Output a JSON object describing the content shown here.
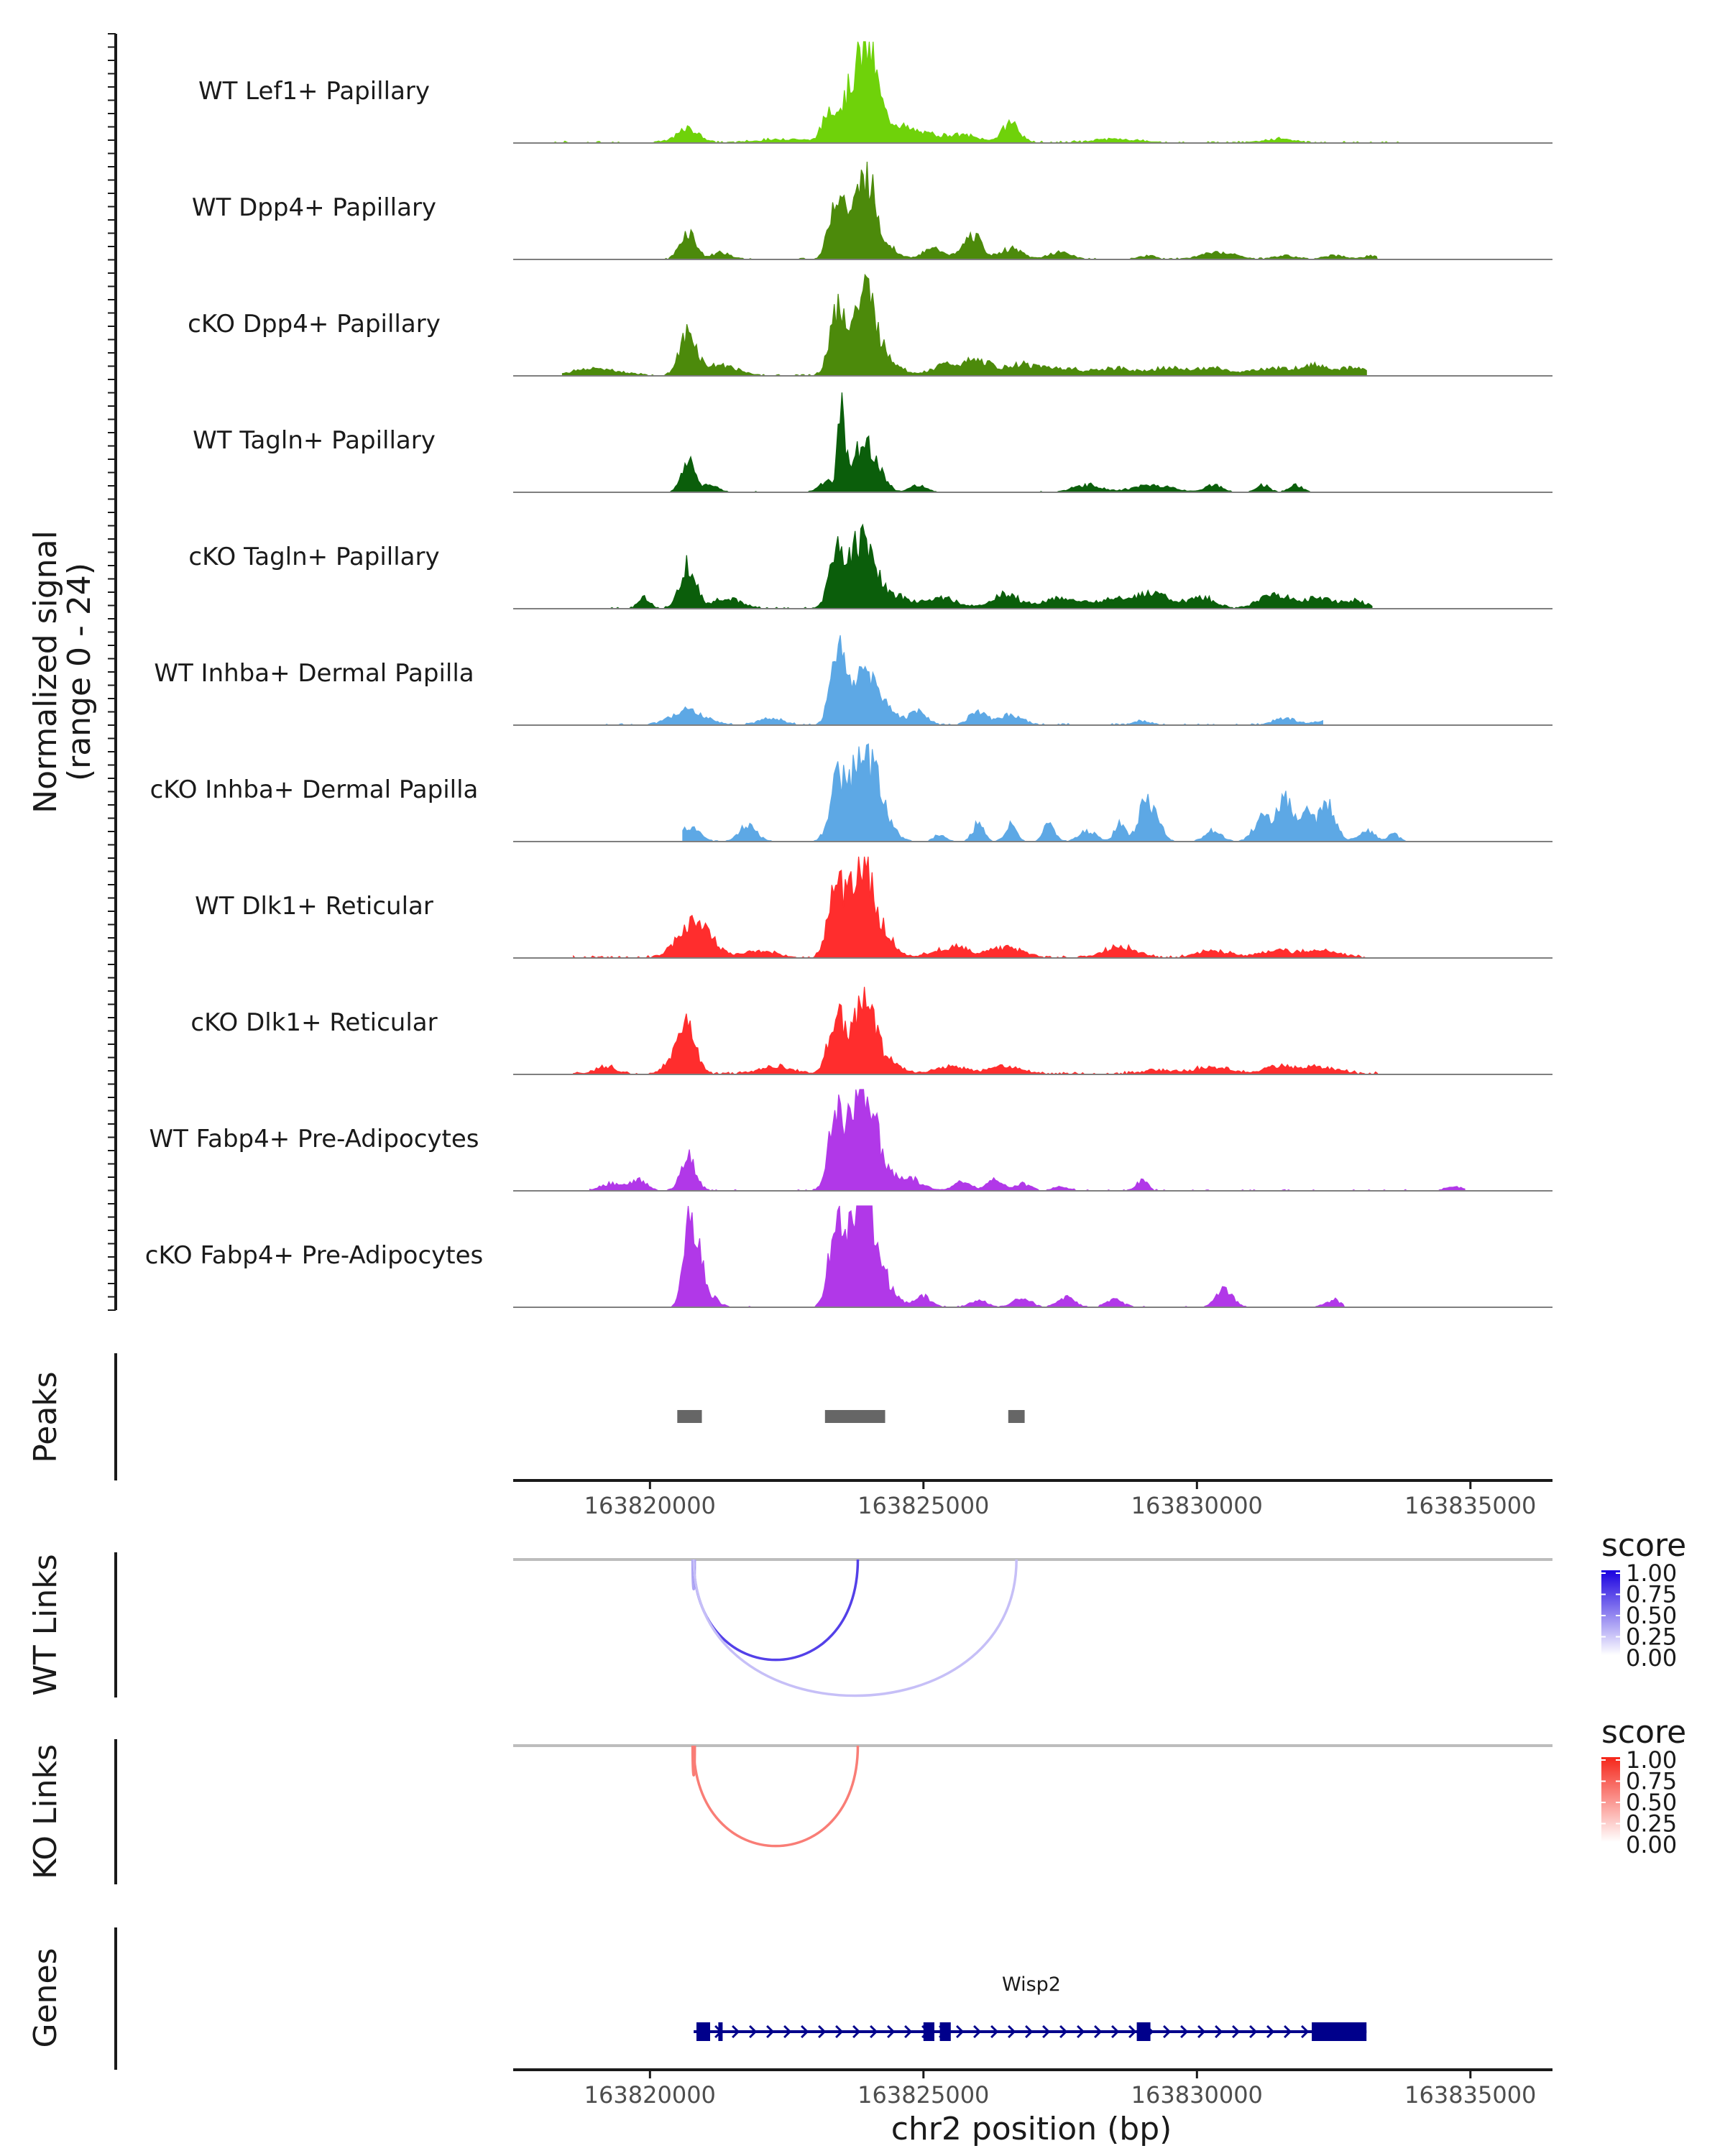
{
  "chart_data": {
    "type": "area",
    "title": "",
    "region": {
      "chromosome": "chr2",
      "start": 163817500,
      "end": 163836500
    },
    "xlabel": "chr2 position (bp)",
    "x_ticks": [
      163820000,
      163825000,
      163830000,
      163835000
    ],
    "y_axis": {
      "label_line1": "Normalized signal",
      "label_line2": "(range 0 - 24)",
      "range": [
        0,
        24
      ]
    },
    "coverage_tracks": [
      {
        "name": "WT Lef1+ Papillary",
        "color": "#6FD20A",
        "peaks": [
          [
            163820700,
            4,
            200
          ],
          [
            163823300,
            9,
            130
          ],
          [
            163823700,
            15,
            180
          ],
          [
            163824000,
            24,
            160
          ],
          [
            163824400,
            4,
            200
          ],
          [
            163824800,
            3,
            400
          ],
          [
            163825700,
            2,
            300
          ],
          [
            163826600,
            6,
            150
          ],
          [
            163822500,
            1,
            500
          ],
          [
            163828500,
            1,
            400
          ],
          [
            163831500,
            1,
            300
          ]
        ],
        "start": 163818200,
        "end": 163833900,
        "noise": 0.6
      },
      {
        "name": "WT Dpp4+ Papillary",
        "color": "#4C8A0B",
        "peaks": [
          [
            163820700,
            8,
            140
          ],
          [
            163821300,
            2,
            150
          ],
          [
            163823400,
            16,
            130
          ],
          [
            163823600,
            8,
            150
          ],
          [
            163823950,
            24,
            160
          ],
          [
            163824300,
            4,
            200
          ],
          [
            163825200,
            3,
            200
          ],
          [
            163825900,
            7,
            160
          ],
          [
            163826600,
            3,
            200
          ],
          [
            163827500,
            2,
            200
          ],
          [
            163829100,
            1,
            150
          ],
          [
            163830400,
            2,
            300
          ],
          [
            163831600,
            1,
            200
          ],
          [
            163832500,
            1,
            200
          ],
          [
            163833200,
            1,
            150
          ]
        ],
        "start": 163819700,
        "end": 163833300,
        "noise": 0.4
      },
      {
        "name": "cKO Dpp4+ Papillary",
        "color": "#4C8A0B",
        "peaks": [
          [
            163820700,
            12,
            150
          ],
          [
            163821300,
            3,
            300
          ],
          [
            163823400,
            16,
            130
          ],
          [
            163823600,
            9,
            160
          ],
          [
            163823950,
            22,
            170
          ],
          [
            163824300,
            5,
            250
          ],
          [
            163825400,
            3,
            250
          ],
          [
            163826000,
            4,
            250
          ],
          [
            163826800,
            3,
            300
          ],
          [
            163827500,
            2,
            300
          ],
          [
            163828500,
            2,
            400
          ],
          [
            163829500,
            2,
            300
          ],
          [
            163830300,
            2,
            300
          ],
          [
            163831300,
            2,
            300
          ],
          [
            163832100,
            3,
            300
          ],
          [
            163832900,
            2,
            300
          ],
          [
            163819000,
            2,
            400
          ]
        ],
        "start": 163818400,
        "end": 163833100,
        "noise": 0.5
      },
      {
        "name": "WT Tagln+ Papillary",
        "color": "#0B5E0B",
        "peaks": [
          [
            163820700,
            9,
            120
          ],
          [
            163821100,
            2,
            150
          ],
          [
            163823250,
            3,
            150
          ],
          [
            163823500,
            28,
            60
          ],
          [
            163823700,
            6,
            100
          ],
          [
            163823950,
            16,
            140
          ],
          [
            163824250,
            4,
            120
          ],
          [
            163824900,
            2,
            150
          ],
          [
            163828000,
            2,
            250
          ],
          [
            163829200,
            2,
            350
          ],
          [
            163830300,
            2,
            150
          ],
          [
            163831200,
            2,
            120
          ],
          [
            163831800,
            2,
            120
          ]
        ],
        "start": 163819800,
        "end": 163832100,
        "noise": 0.3
      },
      {
        "name": "cKO Tagln+ Papillary",
        "color": "#0B5E0B",
        "peaks": [
          [
            163820700,
            13,
            140
          ],
          [
            163821400,
            3,
            250
          ],
          [
            163823400,
            16,
            130
          ],
          [
            163823700,
            9,
            150
          ],
          [
            163823950,
            17,
            180
          ],
          [
            163824400,
            4,
            250
          ],
          [
            163825300,
            3,
            300
          ],
          [
            163826500,
            4,
            250
          ],
          [
            163827500,
            3,
            300
          ],
          [
            163828500,
            3,
            300
          ],
          [
            163829200,
            4,
            300
          ],
          [
            163830100,
            3,
            250
          ],
          [
            163831400,
            4,
            250
          ],
          [
            163832200,
            3,
            300
          ],
          [
            163832900,
            2,
            200
          ],
          [
            163819900,
            3,
            100
          ]
        ],
        "start": 163819200,
        "end": 163833200,
        "noise": 0.6
      },
      {
        "name": "WT Inhba+ Dermal Papilla",
        "color": "#5DA8E5",
        "peaks": [
          [
            163820700,
            4,
            300
          ],
          [
            163822200,
            2,
            200
          ],
          [
            163823400,
            18,
            120
          ],
          [
            163823600,
            8,
            150
          ],
          [
            163823950,
            14,
            170
          ],
          [
            163824300,
            5,
            200
          ],
          [
            163824900,
            4,
            150
          ],
          [
            163826000,
            4,
            150
          ],
          [
            163826600,
            3,
            200
          ],
          [
            163829000,
            1,
            150
          ],
          [
            163831600,
            2,
            200
          ],
          [
            163832300,
            1,
            150
          ]
        ],
        "start": 163819000,
        "end": 163832300,
        "noise": 0.5
      },
      {
        "name": "cKO Inhba+ Dermal Papilla",
        "color": "#5DA8E5",
        "peaks": [
          [
            163820700,
            4,
            200
          ],
          [
            163821800,
            5,
            150
          ],
          [
            163823400,
            16,
            130
          ],
          [
            163823700,
            13,
            150
          ],
          [
            163823950,
            18,
            180
          ],
          [
            163824200,
            9,
            200
          ],
          [
            163825300,
            2,
            100
          ],
          [
            163826000,
            5,
            100
          ],
          [
            163826600,
            5,
            100
          ],
          [
            163827300,
            5,
            100
          ],
          [
            163828000,
            3,
            150
          ],
          [
            163828600,
            5,
            100
          ],
          [
            163829050,
            12,
            120
          ],
          [
            163829300,
            5,
            100
          ],
          [
            163830300,
            3,
            150
          ],
          [
            163831200,
            7,
            150
          ],
          [
            163831600,
            12,
            130
          ],
          [
            163832000,
            8,
            150
          ],
          [
            163832400,
            10,
            140
          ],
          [
            163833100,
            3,
            150
          ],
          [
            163833600,
            2,
            100
          ]
        ],
        "start": 163820600,
        "end": 163834200,
        "noise": 0.3
      },
      {
        "name": "WT Dlk1+ Reticular",
        "color": "#FF2D2D",
        "peaks": [
          [
            163820700,
            7,
            250
          ],
          [
            163821000,
            5,
            250
          ],
          [
            163823400,
            21,
            140
          ],
          [
            163823700,
            10,
            150
          ],
          [
            163823950,
            24,
            170
          ],
          [
            163824300,
            5,
            200
          ],
          [
            163825500,
            3,
            300
          ],
          [
            163826500,
            3,
            300
          ],
          [
            163828600,
            3,
            300
          ],
          [
            163830300,
            2,
            300
          ],
          [
            163831500,
            2,
            300
          ],
          [
            163832300,
            2,
            300
          ],
          [
            163822000,
            2,
            300
          ]
        ],
        "start": 163818600,
        "end": 163833100,
        "noise": 0.8
      },
      {
        "name": "cKO Dlk1+ Reticular",
        "color": "#FF2D2D",
        "peaks": [
          [
            163820700,
            12,
            150
          ],
          [
            163820500,
            4,
            200
          ],
          [
            163823400,
            16,
            140
          ],
          [
            163823700,
            7,
            150
          ],
          [
            163823950,
            18,
            170
          ],
          [
            163824300,
            4,
            250
          ],
          [
            163825500,
            2,
            300
          ],
          [
            163826500,
            2,
            300
          ],
          [
            163829300,
            1,
            300
          ],
          [
            163830300,
            2,
            300
          ],
          [
            163831500,
            2,
            300
          ],
          [
            163832300,
            2,
            300
          ],
          [
            163822300,
            2,
            300
          ],
          [
            163819200,
            2,
            200
          ]
        ],
        "start": 163818600,
        "end": 163833300,
        "noise": 0.9
      },
      {
        "name": "WT Fabp4+ Pre-Adipocytes",
        "color": "#B138E8",
        "peaks": [
          [
            163820700,
            10,
            130
          ],
          [
            163819300,
            2,
            200
          ],
          [
            163819800,
            3,
            150
          ],
          [
            163823400,
            24,
            130
          ],
          [
            163823700,
            12,
            150
          ],
          [
            163823950,
            26,
            180
          ],
          [
            163824300,
            5,
            200
          ],
          [
            163824800,
            3,
            200
          ],
          [
            163825700,
            3,
            150
          ],
          [
            163826300,
            3,
            150
          ],
          [
            163826800,
            2,
            150
          ],
          [
            163827500,
            1,
            150
          ],
          [
            163829000,
            3,
            100
          ],
          [
            163834700,
            1,
            150
          ]
        ],
        "start": 163818900,
        "end": 163834900,
        "noise": 0.4
      },
      {
        "name": "cKO Fabp4+ Pre-Adipocytes",
        "color": "#B138E8",
        "peaks": [
          [
            163820700,
            25,
            100
          ],
          [
            163820900,
            12,
            100
          ],
          [
            163821100,
            3,
            150
          ],
          [
            163823400,
            24,
            130
          ],
          [
            163823700,
            15,
            150
          ],
          [
            163823950,
            30,
            180
          ],
          [
            163824300,
            6,
            200
          ],
          [
            163825000,
            3,
            150
          ],
          [
            163826000,
            2,
            150
          ],
          [
            163826800,
            3,
            150
          ],
          [
            163827600,
            3,
            150
          ],
          [
            163828500,
            2,
            150
          ],
          [
            163830500,
            5,
            150
          ],
          [
            163832500,
            2,
            150
          ]
        ],
        "start": 163820000,
        "end": 163832700,
        "noise": 0.3
      }
    ],
    "peaks_track": {
      "label": "Peaks",
      "color": "#666666",
      "regions": [
        [
          163820500,
          163820950
        ],
        [
          163823200,
          163824300
        ],
        [
          163826550,
          163826850
        ]
      ]
    },
    "link_tracks": [
      {
        "label": "WT Links",
        "legend_title": "score",
        "legend_ticks": [
          "1.00",
          "0.75",
          "0.50",
          "0.25",
          "0.00"
        ],
        "color_high": "#1A00E0",
        "color_low": "#FFFFFF",
        "links": [
          {
            "start": 163820780,
            "end": 163820820,
            "score": 0.35
          },
          {
            "start": 163820800,
            "end": 163823800,
            "score": 0.75
          },
          {
            "start": 163820800,
            "end": 163826700,
            "score": 0.25
          }
        ]
      },
      {
        "label": "KO Links",
        "legend_title": "score",
        "legend_ticks": [
          "1.00",
          "0.75",
          "0.50",
          "0.25",
          "0.00"
        ],
        "color_high": "#F5261A",
        "color_low": "#FFFFFF",
        "links": [
          {
            "start": 163820780,
            "end": 163820820,
            "score": 0.6
          },
          {
            "start": 163820800,
            "end": 163823800,
            "score": 0.6
          }
        ]
      }
    ],
    "genes_track": {
      "label": "Genes",
      "color": "#00008B",
      "gene": "Wisp2",
      "start": 163820800,
      "end": 163833100,
      "exons": [
        [
          163820850,
          163821100
        ],
        [
          163821250,
          163821320
        ],
        [
          163825000,
          163825200
        ],
        [
          163825300,
          163825500
        ],
        [
          163828900,
          163829150
        ],
        [
          163832100,
          163833100
        ]
      ]
    }
  }
}
